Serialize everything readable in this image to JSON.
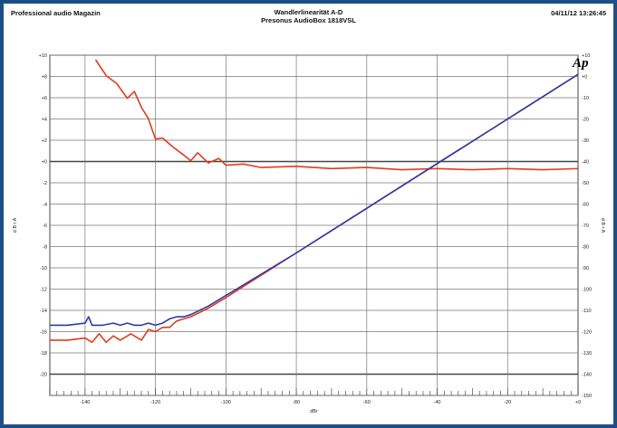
{
  "header": {
    "company": "Professional audio Magazin",
    "title": "Wandlerlinearität A-D",
    "subtitle": "Presonus AudioBox 1818VSL",
    "timestamp": "04/11/12 13:26:45"
  },
  "logo": {
    "text": "Ap",
    "color": "#2a4fa8"
  },
  "chart_data": {
    "type": "line",
    "xlabel": "dBr",
    "xlim": [
      -150,
      0
    ],
    "ylim_left": [
      -150,
      10
    ],
    "ylim_right": [
      -150,
      10
    ],
    "x_ticks": [
      "-140",
      "-120",
      "-100",
      "-80",
      "-60",
      "-40",
      "-20",
      "+0"
    ],
    "y_ticks_left": [
      "+10",
      "+8",
      "+6",
      "+4",
      "+2",
      "+0",
      "-2",
      "-4",
      "-6",
      "-8",
      "-10",
      "-12",
      "-14",
      "-16",
      "-18",
      "-20"
    ],
    "y_ticks_right": [
      "+10",
      "+0",
      "-10",
      "-20",
      "-30",
      "-40",
      "-50",
      "-60",
      "-70",
      "-80",
      "-90",
      "-100",
      "-110",
      "-120",
      "-130",
      "-140",
      "-150"
    ],
    "series": [
      {
        "color": "#e03c1e",
        "axis": "left",
        "x": [
          -137,
          -134,
          -131,
          -128,
          -126,
          -124,
          -122,
          -120,
          -118,
          -115,
          -112,
          -110,
          -108,
          -105,
          -102,
          -100,
          -95,
          -90,
          -80,
          -70,
          -60,
          -50,
          -40,
          -30,
          -20,
          -10,
          0
        ],
        "y": [
          9.6,
          8.2,
          7.5,
          6.2,
          6.8,
          5.4,
          4.4,
          2.6,
          2.7,
          1.9,
          1.2,
          0.7,
          1.4,
          0.5,
          0.9,
          0.3,
          0.4,
          0.1,
          0.2,
          0.0,
          0.1,
          -0.1,
          0.0,
          -0.1,
          0.0,
          -0.1,
          0.0
        ]
      },
      {
        "color": "#e03c1e",
        "axis": "right",
        "x": [
          -150,
          -145,
          -140,
          -138,
          -136,
          -134,
          -132,
          -130,
          -127,
          -124,
          -122,
          -120,
          -118,
          -116,
          -114,
          -112,
          -110,
          -105,
          -100,
          -80,
          -60,
          -40,
          -20,
          0
        ],
        "y": [
          -124,
          -124,
          -123,
          -125,
          -121,
          -125,
          -122,
          -124,
          -121,
          -124,
          -119,
          -120,
          -118,
          -118,
          -115,
          -114,
          -113,
          -109,
          -104,
          -83,
          -62,
          -41,
          -20,
          1
        ]
      },
      {
        "color": "#2c3aa8",
        "axis": "right",
        "x": [
          -150,
          -145,
          -140,
          -139,
          -138,
          -135,
          -132,
          -130,
          -128,
          -126,
          -124,
          -122,
          -120,
          -118,
          -116,
          -114,
          -112,
          -110,
          -105,
          -100,
          -80,
          -60,
          -40,
          -20,
          0
        ],
        "y": [
          -117,
          -117,
          -116,
          -113,
          -117,
          -117,
          -116,
          -117,
          -116,
          -117,
          -117,
          -116,
          -117,
          -116,
          -114,
          -113,
          -113,
          -112,
          -108,
          -103,
          -83,
          -62,
          -41,
          -20,
          1
        ]
      }
    ]
  }
}
